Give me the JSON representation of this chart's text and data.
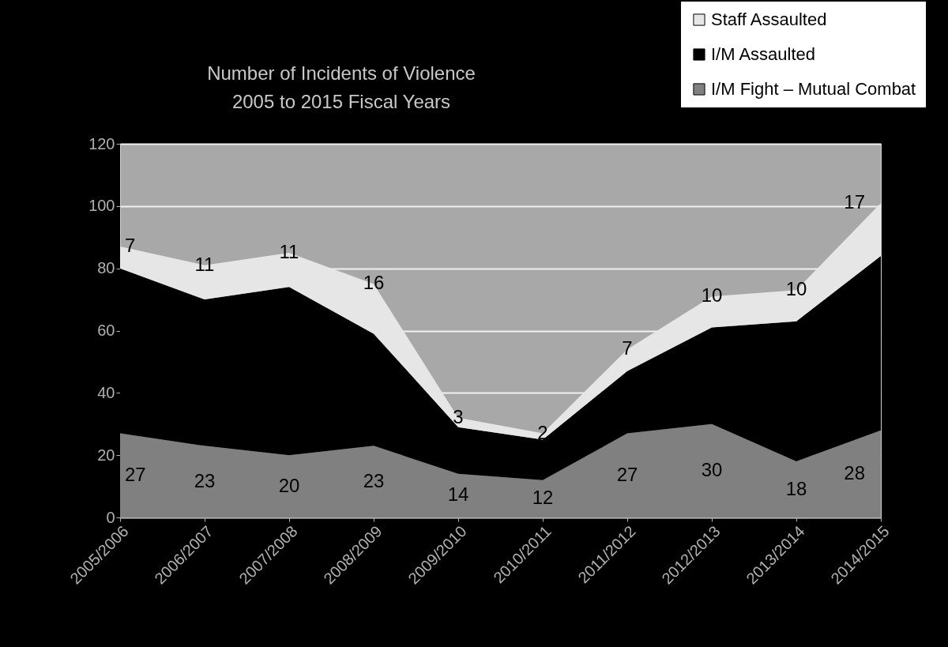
{
  "chart_data": {
    "type": "area",
    "title": "Number of Incidents of Violence",
    "subtitle": "2005 to 2015 Fiscal Years",
    "categories": [
      "2005/2006",
      "2006/2007",
      "2007/2008",
      "2008/2009",
      "2009/2010",
      "2010/2011",
      "2011/2012",
      "2012/2013",
      "2013/2014",
      "2014/2015"
    ],
    "stacked": true,
    "series": [
      {
        "name": "I/M Fight – Mutual Combat",
        "color": "#808080",
        "values": [
          27,
          23,
          20,
          23,
          14,
          12,
          27,
          30,
          18,
          28
        ],
        "value_labels": [
          "27",
          "23",
          "20",
          "23",
          "14",
          "12",
          "27",
          "30",
          "18",
          "28"
        ]
      },
      {
        "name": "I/M Assaulted",
        "color": "#000000",
        "values": [
          53,
          47,
          54,
          36,
          15,
          13,
          20,
          31,
          45,
          56
        ]
      },
      {
        "name": "Staff Assaulted",
        "color": "#e6e6e6",
        "values": [
          7,
          11,
          11,
          16,
          3,
          2,
          7,
          10,
          10,
          17
        ],
        "value_labels": [
          "7",
          "11",
          "11",
          "16",
          "3",
          "2",
          "7",
          "10",
          "10",
          "17"
        ]
      }
    ],
    "ylim": [
      0,
      120
    ],
    "yticks": [
      0,
      20,
      40,
      60,
      80,
      100,
      120
    ],
    "grid": "y",
    "legend": "top right"
  }
}
